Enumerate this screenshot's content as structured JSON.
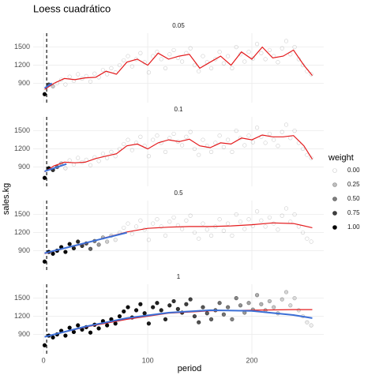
{
  "chart_data": {
    "type": "scatter",
    "title": "Loess cuadrático",
    "x_label": "period",
    "y_label": "sales.kg",
    "x": [
      1,
      5,
      9,
      13,
      17,
      21,
      25,
      29,
      33,
      37,
      41,
      45,
      49,
      53,
      57,
      61,
      65,
      69,
      73,
      77,
      81,
      85,
      89,
      93,
      97,
      101,
      105,
      109,
      113,
      117,
      121,
      125,
      129,
      133,
      137,
      141,
      145,
      149,
      153,
      157,
      161,
      165,
      169,
      173,
      177,
      181,
      185,
      189,
      193,
      197,
      201,
      205,
      209,
      213,
      217,
      221,
      225,
      229,
      233,
      237,
      241,
      245,
      249,
      253,
      257
    ],
    "y": [
      720,
      880,
      850,
      900,
      960,
      880,
      1010,
      940,
      1050,
      980,
      1020,
      930,
      1060,
      1000,
      1120,
      1050,
      1150,
      1080,
      1200,
      1280,
      1350,
      1180,
      1300,
      1400,
      1250,
      1080,
      1350,
      1420,
      1300,
      1150,
      1380,
      1450,
      1320,
      1260,
      1400,
      1480,
      1200,
      1100,
      1350,
      1250,
      1150,
      1300,
      1420,
      1230,
      1350,
      1150,
      1500,
      1380,
      1260,
      1420,
      1310,
      1550,
      1400,
      1300,
      1450,
      1350,
      1250,
      1480,
      1600,
      1380,
      1500,
      1300,
      1200,
      1100,
      1050
    ],
    "xlim": [
      -10,
      269
    ],
    "xticks": [
      0,
      100,
      200
    ],
    "ylim": [
      580,
      1730
    ],
    "yticks": [
      900,
      1200,
      1500
    ],
    "vline": 3,
    "grid": true,
    "legend_title": "weight",
    "legend_ticks": [
      {
        "value": 0,
        "label": "0.00"
      },
      {
        "value": 0.25,
        "label": "0.25"
      },
      {
        "value": 0.5,
        "label": "0.50"
      },
      {
        "value": 0.75,
        "label": "0.75"
      },
      {
        "value": 1,
        "label": "1.00"
      }
    ],
    "facets": [
      {
        "label": "0.05",
        "weights": [
          1,
          0.7,
          0.2,
          0,
          0,
          0,
          0,
          0,
          0,
          0,
          0,
          0,
          0,
          0,
          0,
          0,
          0,
          0,
          0,
          0,
          0,
          0,
          0,
          0,
          0,
          0,
          0,
          0,
          0,
          0,
          0,
          0,
          0,
          0,
          0,
          0,
          0,
          0,
          0,
          0,
          0,
          0,
          0,
          0,
          0,
          0,
          0,
          0,
          0,
          0,
          0,
          0,
          0,
          0,
          0,
          0,
          0,
          0,
          0,
          0,
          0,
          0,
          0,
          0,
          0
        ],
        "lines": [
          {
            "color": "#e41a1c",
            "x": [
              1,
              10,
              20,
              30,
              40,
              50,
              60,
              70,
              80,
              90,
              100,
              110,
              120,
              130,
              140,
              150,
              160,
              170,
              180,
              190,
              200,
              210,
              220,
              230,
              240,
              250,
              258
            ],
            "y": [
              800,
              900,
              980,
              960,
              990,
              1000,
              1100,
              1050,
              1250,
              1300,
              1200,
              1400,
              1300,
              1350,
              1380,
              1150,
              1250,
              1350,
              1200,
              1420,
              1300,
              1500,
              1320,
              1350,
              1450,
              1200,
              1030
            ]
          },
          {
            "color": "#3b6fd6",
            "x": [
              1,
              8
            ],
            "y": [
              820,
              900
            ]
          }
        ]
      },
      {
        "label": "0.1",
        "weights": [
          1,
          0.97,
          0.8,
          0.5,
          0.2,
          0.03,
          0,
          0,
          0,
          0,
          0,
          0,
          0,
          0,
          0,
          0,
          0,
          0,
          0,
          0,
          0,
          0,
          0,
          0,
          0,
          0,
          0,
          0,
          0,
          0,
          0,
          0,
          0,
          0,
          0,
          0,
          0,
          0,
          0,
          0,
          0,
          0,
          0,
          0,
          0,
          0,
          0,
          0,
          0,
          0,
          0,
          0,
          0,
          0,
          0,
          0,
          0,
          0,
          0,
          0,
          0,
          0,
          0,
          0,
          0
        ],
        "lines": [
          {
            "color": "#e41a1c",
            "x": [
              1,
              10,
              20,
              30,
              40,
              50,
              60,
              70,
              80,
              90,
              100,
              110,
              120,
              130,
              140,
              150,
              160,
              170,
              180,
              190,
              200,
              210,
              220,
              230,
              240,
              250,
              258
            ],
            "y": [
              820,
              920,
              980,
              970,
              980,
              1040,
              1080,
              1120,
              1250,
              1280,
              1200,
              1300,
              1350,
              1320,
              1360,
              1250,
              1220,
              1300,
              1280,
              1380,
              1350,
              1430,
              1400,
              1400,
              1420,
              1250,
              1030
            ]
          },
          {
            "color": "#3b6fd6",
            "x": [
              1,
              22
            ],
            "y": [
              830,
              950
            ]
          }
        ]
      },
      {
        "label": "0.5",
        "weights": [
          1,
          1,
          1,
          0.99,
          0.98,
          0.96,
          0.93,
          0.88,
          0.83,
          0.76,
          0.68,
          0.59,
          0.49,
          0.39,
          0.29,
          0.19,
          0.11,
          0.05,
          0.02,
          0,
          0,
          0,
          0,
          0,
          0,
          0,
          0,
          0,
          0,
          0,
          0,
          0,
          0,
          0,
          0,
          0,
          0,
          0,
          0,
          0,
          0,
          0,
          0,
          0,
          0,
          0,
          0,
          0,
          0,
          0,
          0,
          0,
          0,
          0,
          0,
          0,
          0,
          0,
          0,
          0,
          0,
          0,
          0,
          0,
          0
        ],
        "lines": [
          {
            "color": "#e41a1c",
            "x": [
              1,
              20,
              40,
              60,
              80,
              100,
              120,
              140,
              160,
              180,
              200,
              220,
              240,
              258
            ],
            "y": [
              850,
              940,
              1020,
              1120,
              1210,
              1270,
              1290,
              1300,
              1300,
              1310,
              1330,
              1360,
              1350,
              1280
            ]
          },
          {
            "color": "#3b6fd6",
            "x": [
              1,
              80
            ],
            "y": [
              860,
              1200
            ]
          }
        ]
      },
      {
        "label": "1",
        "weights": [
          1,
          1,
          1,
          1,
          1,
          1,
          1,
          1,
          1,
          0.99,
          0.99,
          0.99,
          0.99,
          0.98,
          0.98,
          0.98,
          0.97,
          0.97,
          0.96,
          0.95,
          0.94,
          0.94,
          0.93,
          0.92,
          0.91,
          0.89,
          0.88,
          0.87,
          0.85,
          0.84,
          0.82,
          0.8,
          0.78,
          0.77,
          0.75,
          0.73,
          0.7,
          0.68,
          0.66,
          0.64,
          0.61,
          0.58,
          0.56,
          0.54,
          0.51,
          0.48,
          0.46,
          0.43,
          0.4,
          0.37,
          0.35,
          0.32,
          0.3,
          0.27,
          0.25,
          0.22,
          0.2,
          0.18,
          0.16,
          0.14,
          0.12,
          0.1,
          0.08,
          0.07,
          0.06
        ],
        "lines": [
          {
            "color": "#e41a1c",
            "x": [
              1,
              40,
              80,
              120,
              160,
              200,
              240,
              258
            ],
            "y": [
              860,
              1020,
              1150,
              1250,
              1290,
              1300,
              1310,
              1310
            ]
          },
          {
            "color": "#3b6fd6",
            "x": [
              1,
              40,
              80,
              120,
              160,
              200,
              240,
              258
            ],
            "y": [
              860,
              1030,
              1170,
              1260,
              1300,
              1290,
              1220,
              1170
            ]
          }
        ]
      }
    ]
  }
}
